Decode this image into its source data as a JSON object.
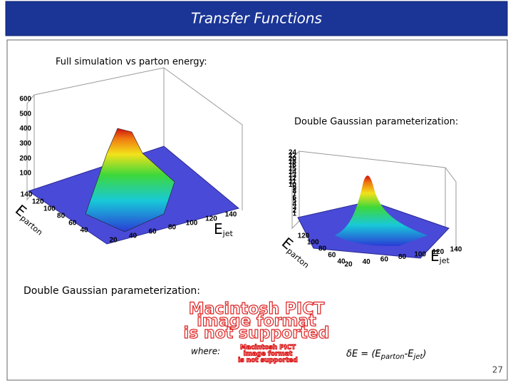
{
  "title": "Transfer Functions",
  "subtitle": "Full simulation vs parton energy:",
  "plot1": {
    "z_ticks": [
      "600",
      "500",
      "400",
      "300",
      "200",
      "100"
    ],
    "parton_ticks": [
      "140",
      "120",
      "100",
      "80",
      "60",
      "40"
    ],
    "jet_ticks": [
      "20",
      "40",
      "60",
      "80",
      "100",
      "120",
      "140"
    ],
    "parton_label": {
      "main": "E",
      "sub": "parton"
    },
    "jet_label": {
      "main": "E",
      "sub": "jet"
    }
  },
  "plot2": {
    "caption": "Double Gaussian parameterization:",
    "z_ticks": [
      "24",
      "22",
      "20",
      "18",
      "16",
      "15",
      "14",
      "13",
      "12",
      "11",
      "10",
      "9",
      "8",
      "7",
      "6",
      "5",
      "4",
      "3",
      "2",
      "1"
    ],
    "parton_ticks": [
      "120",
      "100",
      "80",
      "60",
      "40"
    ],
    "jet_ticks": [
      "20",
      "40",
      "60",
      "80",
      "100",
      "120",
      "140"
    ],
    "parton_label": {
      "main": "E",
      "sub": "parton"
    },
    "jet_label": {
      "main": "E",
      "sub": "jet"
    }
  },
  "section_heading": "Double Gaussian parameterization:",
  "pict_placeholder": [
    "Macintosh PICT",
    "image format",
    "is not supported"
  ],
  "where_label": "where:",
  "formula": {
    "lhs": "δE = (E",
    "sub1": "parton",
    "mid": "-E",
    "sub2": "jet",
    "end": ")"
  },
  "page_number": "27"
}
